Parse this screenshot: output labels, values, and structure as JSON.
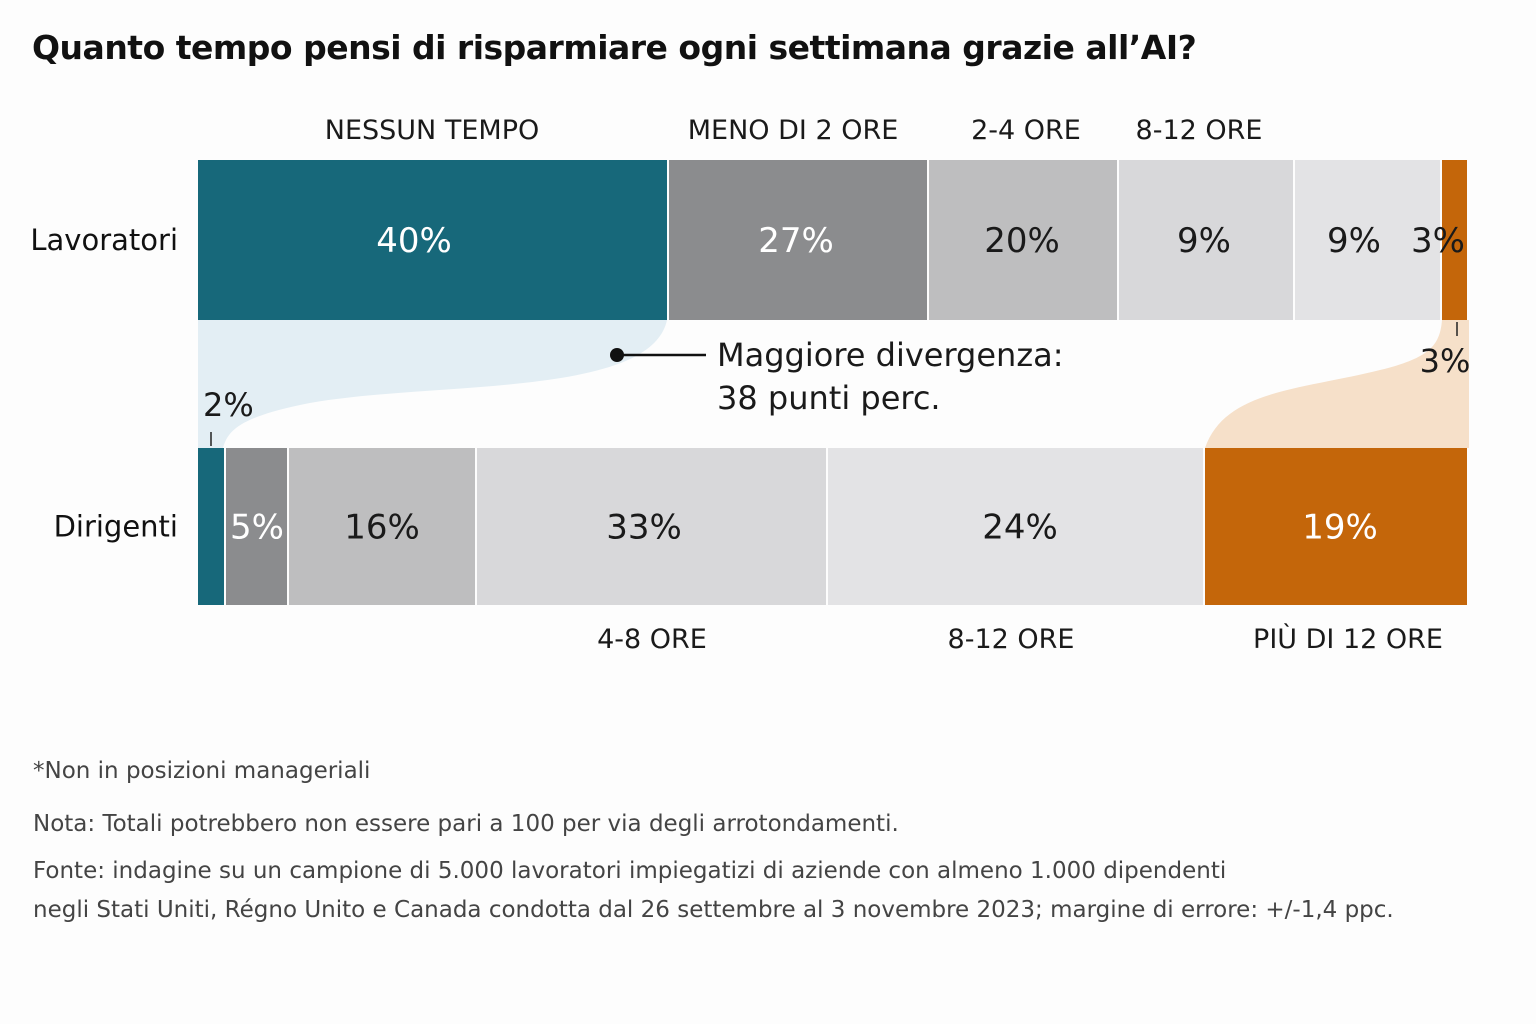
{
  "chart_data": {
    "type": "bar",
    "subtype": "stacked-100-horizontal",
    "title": "Quanto tempo pensi di risparmiare ogni settimana grazie all’AI?",
    "rows": [
      "Lavoratori",
      "Dirigenti"
    ],
    "segments": [
      "Nessun tempo",
      "Meno di 2 ore",
      "2-4 ore",
      "4-8 ore",
      "8-12 ore",
      "Più di 12 ore"
    ],
    "series": [
      {
        "name": "Lavoratori",
        "values": [
          40,
          27,
          20,
          9,
          9,
          3
        ],
        "labels": [
          "40%",
          "27%",
          "20%",
          "9%",
          "9%",
          "3%"
        ]
      },
      {
        "name": "Dirigenti",
        "values": [
          2,
          5,
          16,
          33,
          24,
          19
        ],
        "labels": [
          "2%",
          "5%",
          "16%",
          "33%",
          "24%",
          "19%"
        ]
      }
    ],
    "top_category_labels": [
      "NESSUN TEMPO",
      "MENO DI  2 ORE",
      "2-4 ORE",
      "8-12 ORE"
    ],
    "bottom_category_labels": [
      "4-8 ORE",
      "8-12 ORE",
      "PIÙ DI 12 ORE"
    ],
    "annotation": {
      "line1": "Maggiore divergenza:",
      "line2": "38 punti perc."
    },
    "colors": [
      "#17687a",
      "#8b8c8e",
      "#bebebf",
      "#d8d8da",
      "#e3e3e5",
      "#c4660a"
    ],
    "flow_colors": {
      "teal": "#e3eef4",
      "orange": "#f6e0c9"
    }
  },
  "footnotes": {
    "asterisk": "*Non in posizioni manageriali",
    "nota": "Nota: Totali potrebbero non essere pari a 100 per via degli arrotondamenti.",
    "fonte_1": "Fonte: indagine su un campione di 5.000 lavoratori impiegatizi di aziende con almeno 1.000 dipendenti",
    "fonte_2": "negli Stati Uniti, Régno Unito e Canada condotta dal 26 settembre al 3 novembre 2023; margine di errore: +/-1,4 ppc."
  }
}
